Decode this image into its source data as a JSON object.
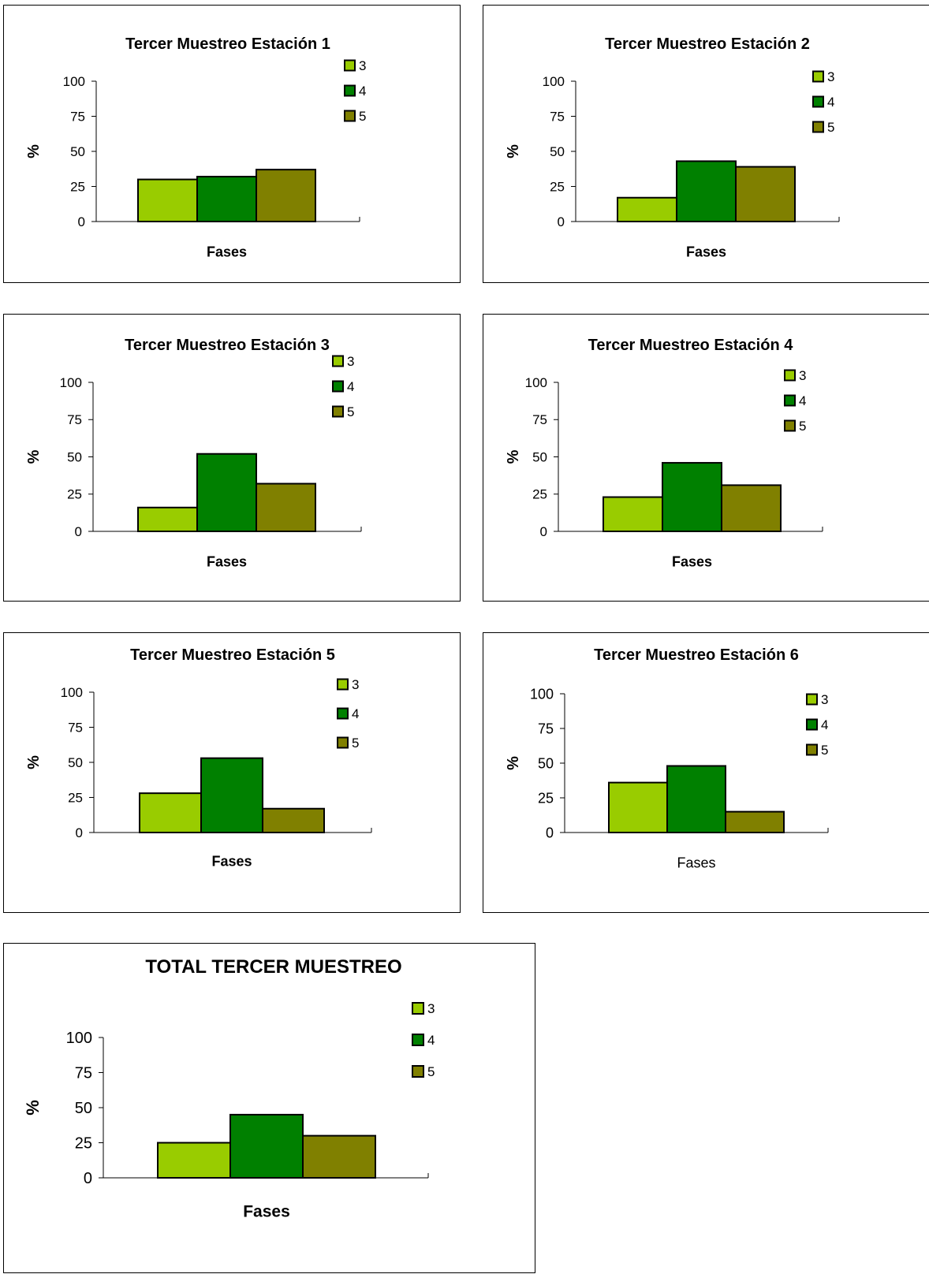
{
  "colors": {
    "phase_3": "#99cc00",
    "phase_4": "#008000",
    "phase_5": "#808000"
  },
  "chart_data": [
    {
      "type": "bar",
      "title": "Tercer Muestreo Estación 1",
      "xlabel": "Fases",
      "ylabel": "%",
      "ylim": [
        0,
        100
      ],
      "yticks": [
        0,
        25,
        50,
        75,
        100
      ],
      "categories": [
        ""
      ],
      "series": [
        {
          "name": "3",
          "values": [
            30
          ]
        },
        {
          "name": "4",
          "values": [
            32
          ]
        },
        {
          "name": "5",
          "values": [
            37
          ]
        }
      ],
      "legend": "top-right",
      "grid": false
    },
    {
      "type": "bar",
      "title": "Tercer Muestreo Estación 2",
      "xlabel": "Fases",
      "ylabel": "%",
      "ylim": [
        0,
        100
      ],
      "yticks": [
        0,
        25,
        50,
        75,
        100
      ],
      "categories": [
        ""
      ],
      "series": [
        {
          "name": "3",
          "values": [
            17
          ]
        },
        {
          "name": "4",
          "values": [
            43
          ]
        },
        {
          "name": "5",
          "values": [
            39
          ]
        }
      ],
      "legend": "top-right",
      "grid": false
    },
    {
      "type": "bar",
      "title": "Tercer Muestreo Estación 3",
      "xlabel": "Fases",
      "ylabel": "%",
      "ylim": [
        0,
        100
      ],
      "yticks": [
        0,
        25,
        50,
        75,
        100
      ],
      "categories": [
        ""
      ],
      "series": [
        {
          "name": "3",
          "values": [
            16
          ]
        },
        {
          "name": "4",
          "values": [
            52
          ]
        },
        {
          "name": "5",
          "values": [
            32
          ]
        }
      ],
      "legend": "top-right",
      "grid": false
    },
    {
      "type": "bar",
      "title": "Tercer Muestreo Estación 4",
      "xlabel": "Fases",
      "ylabel": "%",
      "ylim": [
        0,
        100
      ],
      "yticks": [
        0,
        25,
        50,
        75,
        100
      ],
      "categories": [
        ""
      ],
      "series": [
        {
          "name": "3",
          "values": [
            23
          ]
        },
        {
          "name": "4",
          "values": [
            46
          ]
        },
        {
          "name": "5",
          "values": [
            31
          ]
        }
      ],
      "legend": "top-right",
      "grid": false
    },
    {
      "type": "bar",
      "title": "Tercer Muestreo Estación 5",
      "xlabel": "Fases",
      "ylabel": "%",
      "ylim": [
        0,
        100
      ],
      "yticks": [
        0,
        25,
        50,
        75,
        100
      ],
      "categories": [
        ""
      ],
      "series": [
        {
          "name": "3",
          "values": [
            28
          ]
        },
        {
          "name": "4",
          "values": [
            53
          ]
        },
        {
          "name": "5",
          "values": [
            17
          ]
        }
      ],
      "legend": "top-right",
      "grid": false
    },
    {
      "type": "bar",
      "title": "Tercer Muestreo Estación 6",
      "xlabel": "Fases",
      "ylabel": "%",
      "ylim": [
        0,
        100
      ],
      "yticks": [
        0,
        25,
        50,
        75,
        100
      ],
      "categories": [
        ""
      ],
      "series": [
        {
          "name": "3",
          "values": [
            36
          ]
        },
        {
          "name": "4",
          "values": [
            48
          ]
        },
        {
          "name": "5",
          "values": [
            15
          ]
        }
      ],
      "legend": "top-right",
      "grid": false
    },
    {
      "type": "bar",
      "title": "TOTAL TERCER MUESTREO",
      "xlabel": "Fases",
      "ylabel": "%",
      "ylim": [
        0,
        100
      ],
      "yticks": [
        0,
        25,
        50,
        75,
        100
      ],
      "categories": [
        ""
      ],
      "series": [
        {
          "name": "3",
          "values": [
            25
          ]
        },
        {
          "name": "4",
          "values": [
            45
          ]
        },
        {
          "name": "5",
          "values": [
            30
          ]
        }
      ],
      "legend": "top-right",
      "grid": false
    }
  ]
}
